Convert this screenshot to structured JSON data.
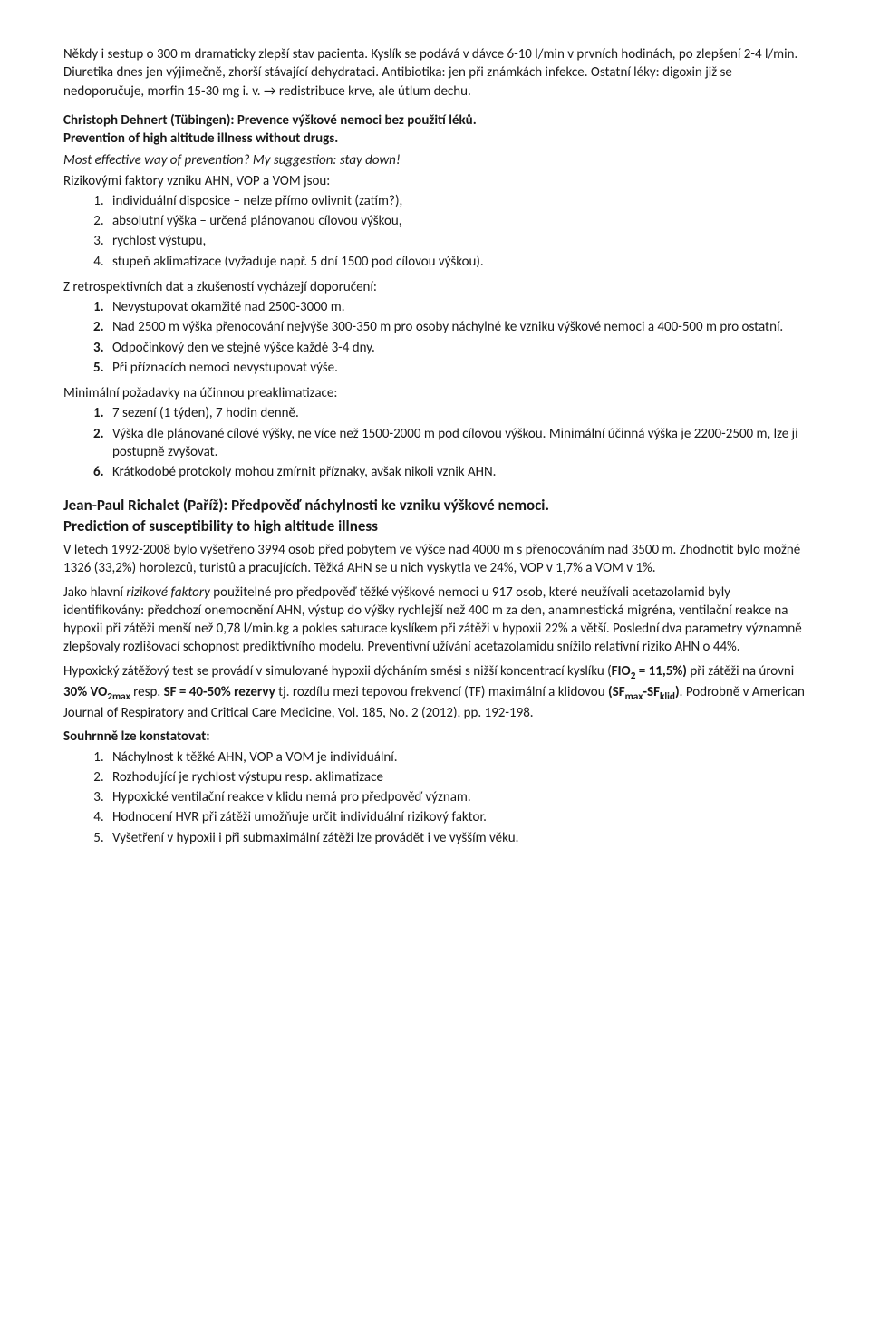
{
  "p1": "Někdy i sestup o 300 m dramaticky zlepší stav pacienta. Kyslík se podává v dávce 6-10 l/min v prvních hodinách, po zlepšení 2-4 l/min. Diuretika dnes jen výjimečně, zhorší stávající dehydrataci. Antibiotika: jen při známkách infekce. Ostatní léky: digoxin již se nedoporučuje, morfin 15-30 mg i. v. → redistribuce krve, ale útlum dechu.",
  "t1a": "Christoph Dehnert (Tübingen): Prevence výškové nemoci bez použití léků.",
  "t1b": "Prevention of high altitude illness without drugs.",
  "p2": "Most effective way of prevention? My suggestion: stay down!",
  "p3": "Rizikovými faktory vzniku AHN, VOP a VOM jsou:",
  "l1_1": "individuální disposice – nelze přímo ovlivnit (zatím?),",
  "l1_2": "absolutní výška – určená plánovanou cílovou výškou,",
  "l1_3": "rychlost výstupu,",
  "l1_4": "stupeň aklimatizace (vyžaduje např. 5 dní 1500 pod cílovou výškou).",
  "p4": "Z retrospektivních dat a zkušeností vycházejí doporučení:",
  "l2_1": "Nevystupovat okamžitě nad 2500-3000 m.",
  "l2_2": "Nad 2500 m výška přenocování nejvýše 300-350 m pro osoby náchylné ke vzniku výškové nemoci a 400-500 m pro ostatní.",
  "l2_3": "Odpočinkový den ve stejné výšce každé 3-4 dny.",
  "l2_5": "Při příznacích nemoci nevystupovat výše.",
  "p5": "Minimální požadavky na účinnou preaklimatizace:",
  "l3_1": "7 sezení (1 týden), 7 hodin denně.",
  "l3_2": "Výška dle plánované cílové výšky, ne více než 1500-2000 m pod cílovou výškou. Minimální účinná výška je 2200-2500 m, lze ji postupně zvyšovat.",
  "l3_6": "Krátkodobé protokoly mohou zmírnit příznaky, avšak nikoli vznik AHN.",
  "t2a": "Jean-Paul Richalet (Paříž): Předpověď náchylnosti ke vzniku výškové nemoci.",
  "t2b": "Prediction of susceptibility to high altitude illness",
  "p6": "V letech 1992-2008 bylo vyšetřeno 3994 osob před pobytem ve výšce nad 4000 m s přenocováním nad 3500 m. Zhodnotit bylo možné 1326 (33,2%) horolezců, turistů a pracujících. Těžká AHN se u nich vyskytla ve 24%, VOP v 1,7% a VOM v 1%.",
  "p7a": "Jako hlavní ",
  "p7b": "rizikové faktory",
  "p7c": " použitelné pro předpověď těžké výškové nemoci u 917 osob, které neužívali acetazolamid byly identifikovány: předchozí onemocnění AHN, výstup do výšky rychlejší než 400 m za den, anamnestická migréna, ventilační reakce na hypoxii při zátěži menší než 0,78 l/min.kg a pokles saturace kyslíkem při zátěži v hypoxii 22% a větší. Poslední dva parametry významně zlepšovaly rozlišovací schopnost prediktivního modelu. Preventivní užívání acetazolamidu snížilo relativní riziko AHN o 44%.",
  "p8a": "Hypoxický zátěžový test se provádí v simulované hypoxii dýcháním směsi s nižší koncentrací kyslíku (",
  "p8b": "FIO",
  "p8c": " = 11,5%)",
  "p8d": " při zátěži na úrovni ",
  "p8e": "30% VO",
  "p8f": " resp. ",
  "p8g": "SF = 40-50% rezervy",
  "p8h": " tj. rozdílu mezi tepovou frekvencí (TF) maximální a klidovou ",
  "p8i": "(SF",
  "p8j": "-SF",
  "p8k": ")",
  "p8l": ". Podrobně v American Journal of Respiratory and Critical Care Medicine, Vol. 185, No. 2 (2012), pp. 192-198.",
  "p9": "Souhrnně lze konstatovat:",
  "l4_1": "Náchylnost k těžké AHN, VOP a VOM je individuální.",
  "l4_2": "Rozhodující je rychlost výstupu resp. aklimatizace",
  "l4_3": "Hypoxické ventilační reakce v klidu nemá pro předpověď význam.",
  "l4_4": "Hodnocení HVR při zátěži umožňuje určit individuální rizikový faktor.",
  "l4_5": "Vyšetření v hypoxii i při submaximální zátěži lze provádět i ve vyšším věku.",
  "sub2": "2",
  "sub2max": "2max",
  "submax": "max",
  "subklid": "klid"
}
